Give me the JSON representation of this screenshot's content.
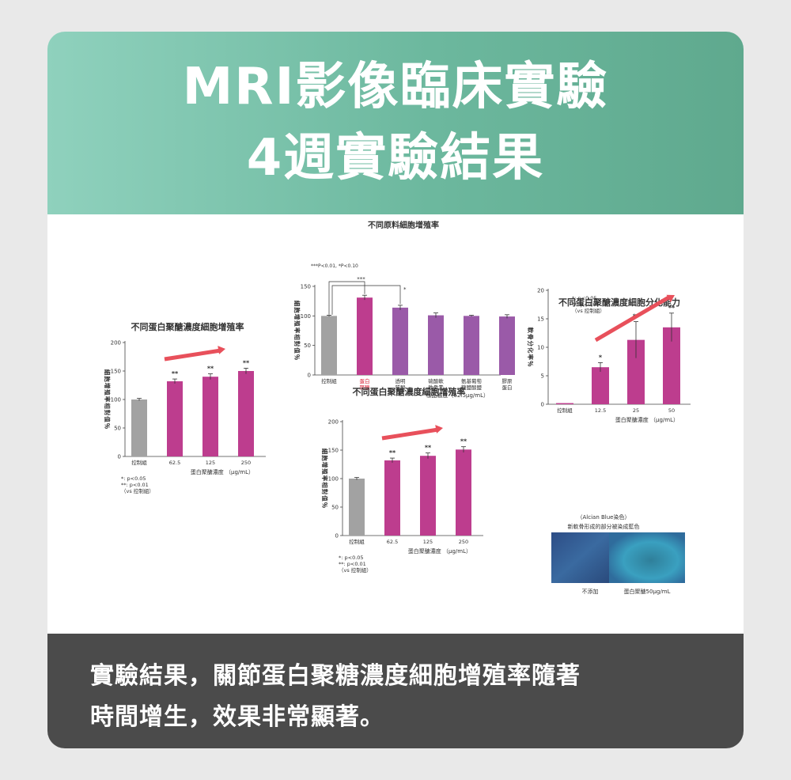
{
  "header": {
    "line1": "MRI影像臨床實驗",
    "line2": "4週實驗結果"
  },
  "footer": {
    "line1": "實驗結果，關節蛋白聚糖濃度細胞增殖率隨著",
    "line2": "時間增生，效果非常顯著。"
  },
  "colors": {
    "grey": "#a2a2a2",
    "magenta": "#bd3d8e",
    "purple": "#9a5aa8",
    "arrow": "#e8505b"
  },
  "chart_data": [
    {
      "id": "top",
      "type": "bar",
      "title": "不同原料細胞增殖率",
      "significance_note": "***P<0.01, *P<0.10",
      "ylabel": "細胞增殖率相對值％",
      "xlabel": "樣品濃度（62.5μg/mL）",
      "ylim": [
        0,
        150
      ],
      "yticks": [
        "0",
        "50",
        "100",
        "150"
      ],
      "categories": [
        "控制組",
        "蛋白\n聚醣",
        "透明\n質酸",
        "硫酸軟\n軟骨素",
        "氨基葡萄\n糖鹽酸鹽",
        "膠原\n蛋白"
      ],
      "values": [
        100,
        131,
        114,
        101,
        100,
        99
      ],
      "errors": [
        1,
        4,
        4,
        4,
        1,
        3
      ],
      "colors": [
        "grey",
        "magenta",
        "purple",
        "purple",
        "purple",
        "purple"
      ],
      "brackets": [
        "***",
        "*"
      ]
    },
    {
      "id": "left",
      "type": "bar",
      "title": "不同蛋白聚醣濃度細胞增殖率",
      "ylabel": "細胞增殖率相對值％",
      "xlabel": "蛋白聚醣濃度 （μg/mL）",
      "ylim": [
        0,
        200
      ],
      "yticks": [
        "0",
        "50",
        "100",
        "150",
        "200"
      ],
      "categories": [
        "控制組",
        "62.5",
        "125",
        "250"
      ],
      "values": [
        100,
        132,
        140,
        150
      ],
      "errors": [
        2,
        4,
        5,
        5
      ],
      "marks": [
        "",
        "**",
        "**",
        "**"
      ],
      "colors": [
        "grey",
        "magenta",
        "magenta",
        "magenta"
      ],
      "notes": [
        "*: p<0.05",
        "**: p<0.01",
        "（vs 控制組）"
      ]
    },
    {
      "id": "middle",
      "type": "bar",
      "title": "不同蛋白聚醣濃度細胞增殖率",
      "ylabel": "細胞增殖率相對值％",
      "xlabel": "蛋白聚醣濃度 （μg/mL）",
      "ylim": [
        0,
        200
      ],
      "yticks": [
        "0",
        "50",
        "100",
        "150",
        "200"
      ],
      "categories": [
        "控制組",
        "62.5",
        "125",
        "250"
      ],
      "values": [
        100,
        132,
        140,
        151
      ],
      "errors": [
        2,
        4,
        5,
        5
      ],
      "marks": [
        "",
        "**",
        "**",
        "**"
      ],
      "colors": [
        "grey",
        "magenta",
        "magenta",
        "magenta"
      ],
      "notes": [
        "*: p<0.05",
        "**: p<0.01",
        "（vs 控制組）"
      ]
    },
    {
      "id": "right",
      "type": "bar",
      "title": "不同蛋白聚醣濃度細胞分化能力",
      "ylabel": "軟骨分化率％",
      "xlabel": "蛋白聚醣濃度 （μg/mL）",
      "ylim": [
        0,
        20
      ],
      "yticks": [
        "0",
        "5",
        "10",
        "15",
        "20"
      ],
      "categories": [
        "控制組",
        "12.5",
        "25",
        "50"
      ],
      "values": [
        0.2,
        6.5,
        11.3,
        13.5
      ],
      "errors": [
        0,
        0.8,
        3.2,
        2.5
      ],
      "marks": [
        "",
        "*",
        "**",
        "**"
      ],
      "colors": [
        "magenta",
        "magenta",
        "magenta",
        "magenta"
      ],
      "notes": [
        "*: p<0.05",
        "**: p<0.01",
        "（vs 控制組）"
      ]
    }
  ],
  "staining": {
    "caption": "（Alcian Blue染色）",
    "subcaption": "新軟骨形成的部分被染成藍色",
    "labels": [
      "不添加",
      "蛋白聚醣50μg/mL"
    ]
  }
}
